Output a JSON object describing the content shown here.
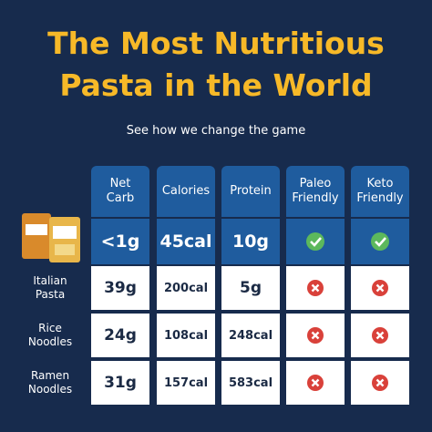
{
  "header": {
    "title_lines": [
      "The Most Nutritious",
      "Pasta in the World"
    ],
    "subtitle": "See how we change the game"
  },
  "table": {
    "columns": [
      "Net Carb",
      "Calories",
      "Protein",
      "Paleo Friendly",
      "Keto Friendly"
    ],
    "rows": [
      {
        "label": null,
        "cells": [
          "<1g",
          "45cal",
          "10g",
          true,
          true
        ]
      },
      {
        "label": "Italian Pasta",
        "cells": [
          "39g",
          "200cal",
          "5g",
          false,
          false
        ]
      },
      {
        "label": "Rice Noodles",
        "cells": [
          "24g",
          "108cal",
          "248cal",
          false,
          false
        ]
      },
      {
        "label": "Ramen Noodles",
        "cells": [
          "31g",
          "157cal",
          "583cal",
          false,
          false
        ]
      }
    ]
  }
}
